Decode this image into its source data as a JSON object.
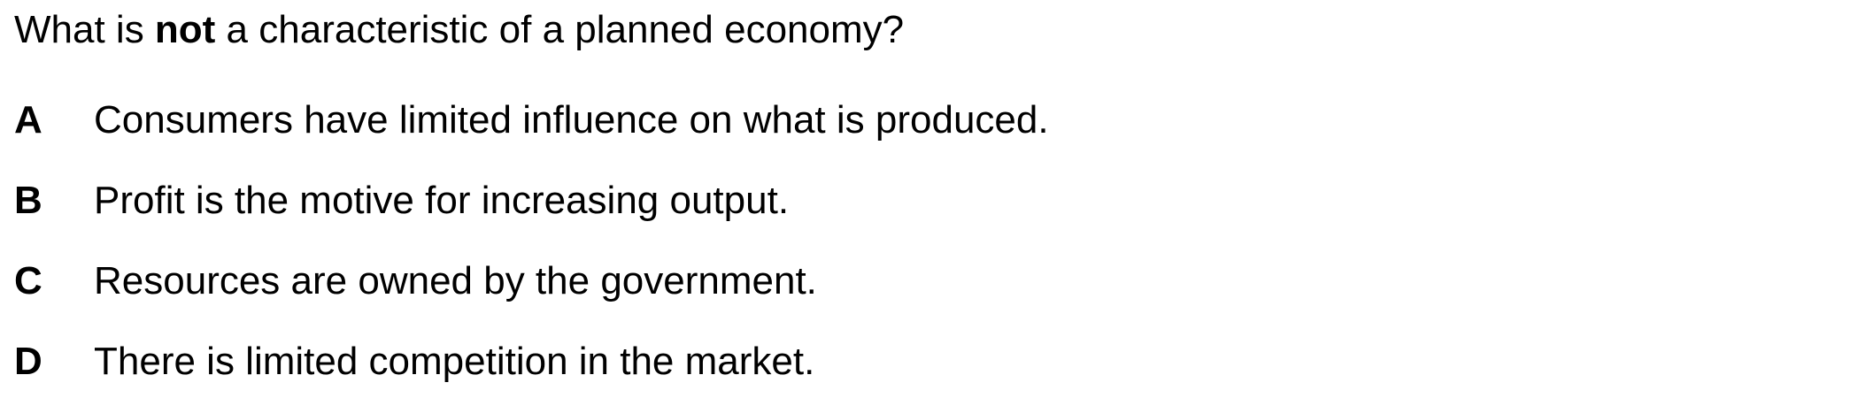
{
  "question": {
    "prefix": "What is ",
    "emphasis": "not",
    "suffix": " a characteristic of a planned economy?"
  },
  "options": [
    {
      "letter": "A",
      "text": "Consumers have limited influence on what is produced."
    },
    {
      "letter": "B",
      "text": "Profit is the motive for increasing output."
    },
    {
      "letter": "C",
      "text": "Resources are owned by the government."
    },
    {
      "letter": "D",
      "text": "There is limited competition in the market."
    }
  ]
}
